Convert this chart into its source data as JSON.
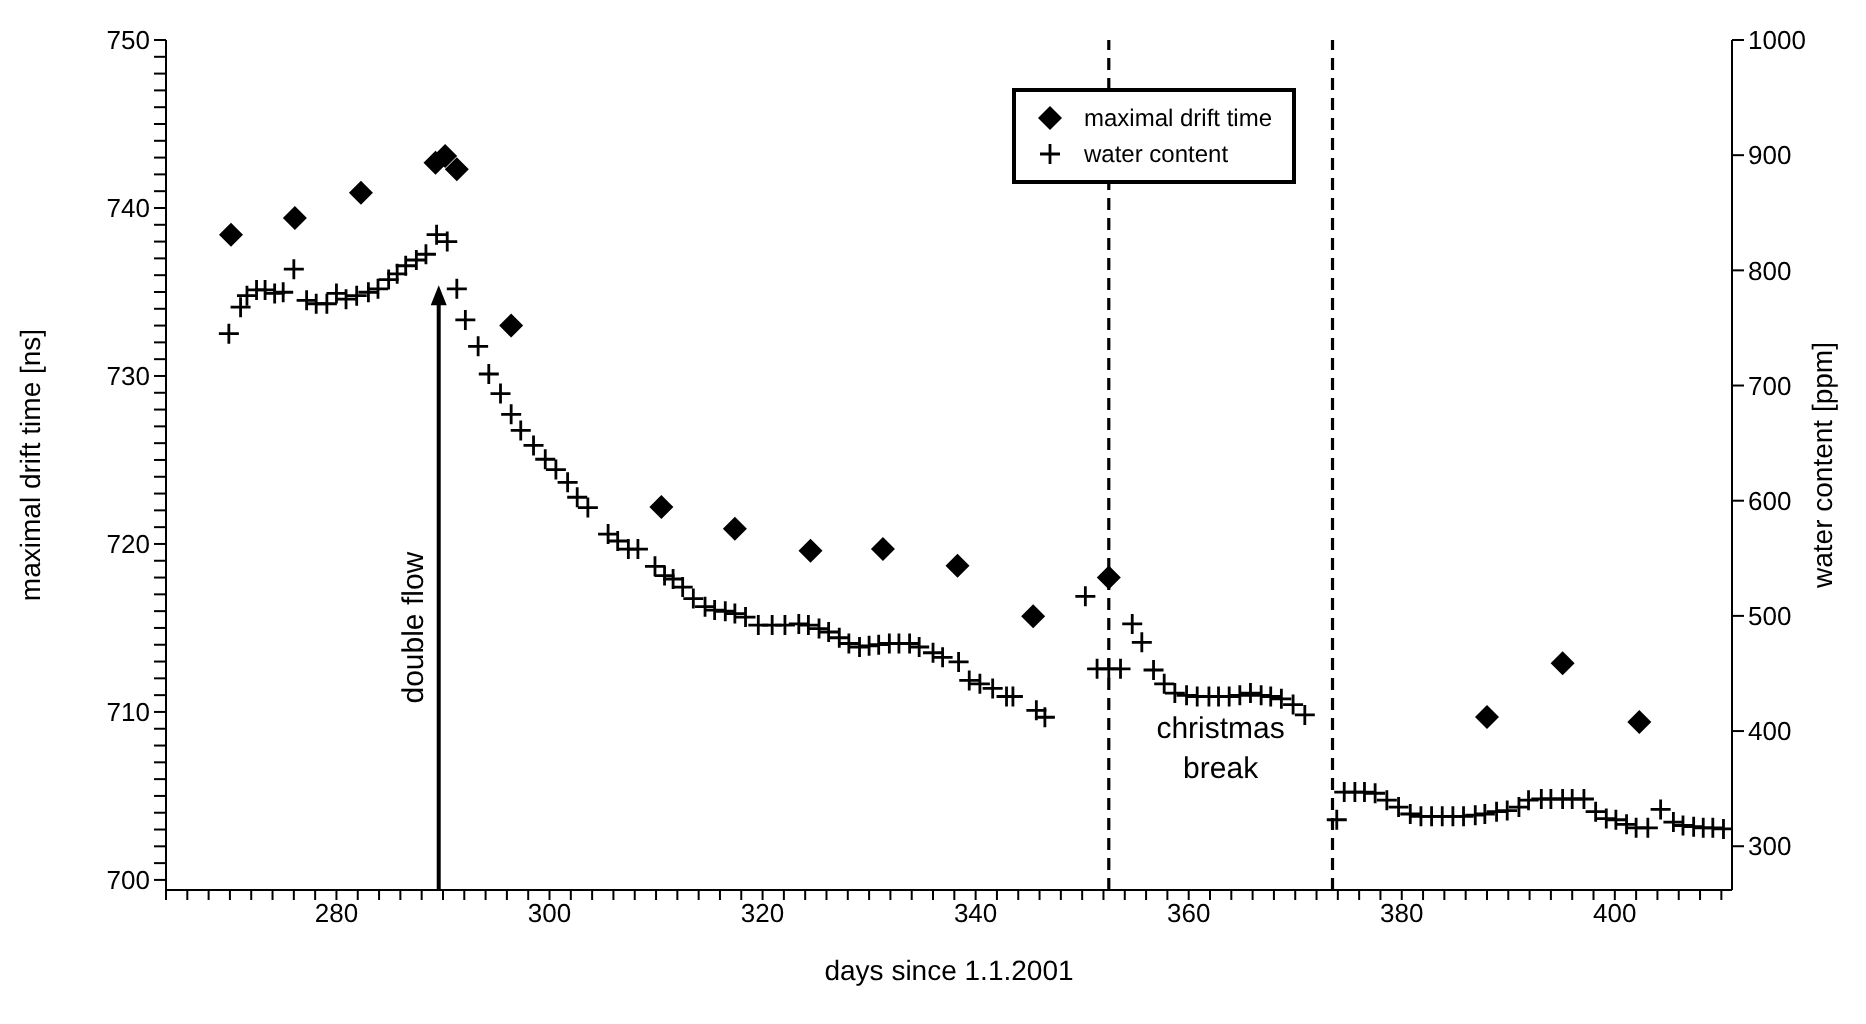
{
  "chart_data": {
    "type": "scatter",
    "xlabel": "days since 1.1.2001",
    "ylabel": "maximal drift time [ns]",
    "y2label": "water content [ppm]",
    "xlim": [
      264,
      411
    ],
    "xticks": [
      {
        "value": 264,
        "label": null
      },
      {
        "value": 266,
        "label": null
      },
      {
        "value": 268,
        "label": null
      },
      {
        "value": 270,
        "label": null
      },
      {
        "value": 272,
        "label": null
      },
      {
        "value": 274,
        "label": null
      },
      {
        "value": 276,
        "label": null
      },
      {
        "value": 278,
        "label": null
      },
      280,
      {
        "value": 282,
        "label": null
      },
      {
        "value": 284,
        "label": null
      },
      {
        "value": 286,
        "label": null
      },
      {
        "value": 288,
        "label": null
      },
      {
        "value": 290,
        "label": null
      },
      {
        "value": 292,
        "label": null
      },
      {
        "value": 294,
        "label": null
      },
      {
        "value": 296,
        "label": null
      },
      {
        "value": 298,
        "label": null
      },
      300,
      {
        "value": 302,
        "label": null
      },
      {
        "value": 304,
        "label": null
      },
      {
        "value": 306,
        "label": null
      },
      {
        "value": 308,
        "label": null
      },
      {
        "value": 310,
        "label": null
      },
      {
        "value": 312,
        "label": null
      },
      {
        "value": 314,
        "label": null
      },
      {
        "value": 316,
        "label": null
      },
      {
        "value": 318,
        "label": null
      },
      320,
      {
        "value": 322,
        "label": null
      },
      {
        "value": 324,
        "label": null
      },
      {
        "value": 326,
        "label": null
      },
      {
        "value": 328,
        "label": null
      },
      {
        "value": 330,
        "label": null
      },
      {
        "value": 332,
        "label": null
      },
      {
        "value": 334,
        "label": null
      },
      {
        "value": 336,
        "label": null
      },
      {
        "value": 338,
        "label": null
      },
      340,
      {
        "value": 342,
        "label": null
      },
      {
        "value": 344,
        "label": null
      },
      {
        "value": 346,
        "label": null
      },
      {
        "value": 348,
        "label": null
      },
      {
        "value": 350,
        "label": null
      },
      {
        "value": 352,
        "label": null
      },
      {
        "value": 354,
        "label": null
      },
      {
        "value": 356,
        "label": null
      },
      {
        "value": 358,
        "label": null
      },
      360,
      {
        "value": 362,
        "label": null
      },
      {
        "value": 364,
        "label": null
      },
      {
        "value": 366,
        "label": null
      },
      {
        "value": 368,
        "label": null
      },
      {
        "value": 370,
        "label": null
      },
      {
        "value": 372,
        "label": null
      },
      {
        "value": 374,
        "label": null
      },
      {
        "value": 376,
        "label": null
      },
      {
        "value": 378,
        "label": null
      },
      380,
      {
        "value": 382,
        "label": null
      },
      {
        "value": 384,
        "label": null
      },
      {
        "value": 386,
        "label": null
      },
      {
        "value": 388,
        "label": null
      },
      {
        "value": 390,
        "label": null
      },
      {
        "value": 392,
        "label": null
      },
      {
        "value": 394,
        "label": null
      },
      {
        "value": 396,
        "label": null
      },
      {
        "value": 398,
        "label": null
      },
      400,
      {
        "value": 402,
        "label": null
      },
      {
        "value": 404,
        "label": null
      },
      {
        "value": 406,
        "label": null
      },
      {
        "value": 408,
        "label": null
      },
      {
        "value": 410,
        "label": null
      }
    ],
    "ylim": [
      699.4,
      750
    ],
    "yticks": [
      700,
      {
        "value": 701,
        "label": null
      },
      {
        "value": 702,
        "label": null
      },
      {
        "value": 703,
        "label": null
      },
      {
        "value": 704,
        "label": null
      },
      {
        "value": 705,
        "label": null
      },
      {
        "value": 706,
        "label": null
      },
      {
        "value": 707,
        "label": null
      },
      {
        "value": 708,
        "label": null
      },
      {
        "value": 709,
        "label": null
      },
      710,
      {
        "value": 711,
        "label": null
      },
      {
        "value": 712,
        "label": null
      },
      {
        "value": 713,
        "label": null
      },
      {
        "value": 714,
        "label": null
      },
      {
        "value": 715,
        "label": null
      },
      {
        "value": 716,
        "label": null
      },
      {
        "value": 717,
        "label": null
      },
      {
        "value": 718,
        "label": null
      },
      {
        "value": 719,
        "label": null
      },
      720,
      {
        "value": 721,
        "label": null
      },
      {
        "value": 722,
        "label": null
      },
      {
        "value": 723,
        "label": null
      },
      {
        "value": 724,
        "label": null
      },
      {
        "value": 725,
        "label": null
      },
      {
        "value": 726,
        "label": null
      },
      {
        "value": 727,
        "label": null
      },
      {
        "value": 728,
        "label": null
      },
      {
        "value": 729,
        "label": null
      },
      730,
      {
        "value": 731,
        "label": null
      },
      {
        "value": 732,
        "label": null
      },
      {
        "value": 733,
        "label": null
      },
      {
        "value": 734,
        "label": null
      },
      {
        "value": 735,
        "label": null
      },
      {
        "value": 736,
        "label": null
      },
      {
        "value": 737,
        "label": null
      },
      {
        "value": 738,
        "label": null
      },
      {
        "value": 739,
        "label": null
      },
      740,
      {
        "value": 741,
        "label": null
      },
      {
        "value": 742,
        "label": null
      },
      {
        "value": 743,
        "label": null
      },
      {
        "value": 744,
        "label": null
      },
      {
        "value": 745,
        "label": null
      },
      {
        "value": 746,
        "label": null
      },
      {
        "value": 747,
        "label": null
      },
      {
        "value": 748,
        "label": null
      },
      {
        "value": 749,
        "label": null
      },
      750
    ],
    "y2lim": [
      262,
      1000
    ],
    "y2ticks": [
      300,
      400,
      500,
      600,
      700,
      800,
      900,
      1000
    ],
    "grid": false,
    "legend": "top right",
    "series": [
      {
        "name": "maximal drift time",
        "color": "#000000",
        "marker": "diamond",
        "x": [
          270.1,
          276.1,
          282.3,
          289.3,
          290.2,
          291.3,
          296.4,
          310.5,
          317.4,
          324.5,
          331.3,
          338.3,
          345.4,
          352.5,
          388.0,
          395.1,
          402.3
        ],
        "values": [
          738.4,
          739.4,
          740.9,
          742.7,
          743.1,
          742.3,
          733.0,
          722.2,
          720.9,
          719.6,
          719.7,
          718.7,
          715.7,
          718.0,
          709.7,
          712.9,
          709.4
        ]
      },
      {
        "name": "water content",
        "color": "#000000",
        "marker": "cross",
        "axis": "y2",
        "x": [
          269.9,
          271.0,
          271.6,
          272.5,
          273.3,
          274.2,
          275.0,
          276.0,
          277.2,
          278.1,
          279.1,
          280.0,
          280.9,
          281.9,
          283.0,
          283.9,
          284.9,
          285.7,
          286.5,
          287.5,
          288.4,
          289.4,
          290.4,
          291.3,
          292.1,
          293.3,
          294.3,
          295.4,
          296.4,
          297.3,
          298.5,
          299.6,
          300.6,
          301.7,
          302.6,
          303.6,
          305.5,
          306.4,
          307.4,
          308.3,
          309.9,
          310.8,
          311.6,
          312.5,
          313.5,
          314.6,
          315.5,
          316.5,
          317.4,
          318.4,
          319.6,
          320.9,
          322.1,
          323.4,
          324.3,
          325.3,
          326.2,
          327.2,
          328.1,
          329.1,
          330.0,
          330.9,
          331.9,
          332.8,
          333.8,
          334.7,
          336.0,
          336.9,
          338.4,
          339.4,
          340.4,
          341.6,
          342.9,
          343.5,
          345.7,
          346.5,
          350.3,
          351.4,
          352.5,
          353.6,
          354.7,
          355.6,
          356.7,
          357.7,
          358.7,
          359.8,
          360.8,
          361.9,
          362.8,
          363.8,
          364.8,
          365.8,
          366.8,
          367.7,
          368.7,
          369.8,
          370.9,
          373.9,
          374.6,
          375.6,
          376.5,
          377.5,
          378.6,
          379.7,
          380.8,
          381.8,
          382.8,
          383.8,
          384.8,
          385.8,
          386.9,
          387.8,
          388.9,
          389.9,
          391.0,
          391.9,
          393.1,
          394.0,
          395.1,
          396.0,
          397.1,
          398.2,
          399.2,
          400.1,
          401.1,
          402.0,
          403.1,
          404.3,
          405.5,
          406.4,
          407.4,
          408.3,
          409.2,
          410.2
        ],
        "values": [
          745,
          768,
          778,
          783,
          783,
          780,
          781,
          801,
          774,
          771,
          771,
          780,
          775,
          778,
          781,
          784,
          792,
          797,
          804,
          809,
          814,
          831,
          825,
          784,
          757,
          734,
          710,
          693,
          675,
          661,
          648,
          636,
          627,
          616,
          603,
          594,
          571,
          565,
          558,
          558,
          543,
          535,
          532,
          525,
          515,
          508,
          505,
          504,
          502,
          499,
          492,
          492,
          492,
          493,
          492,
          489,
          486,
          481,
          476,
          473,
          474,
          475,
          476,
          476,
          476,
          473,
          468,
          464,
          460,
          444,
          441,
          437,
          430,
          430,
          418,
          412,
          517,
          454,
          454,
          454,
          493,
          477,
          453,
          441,
          433,
          431,
          430,
          430,
          430,
          430,
          431,
          433,
          431,
          430,
          428,
          423,
          414,
          323,
          347,
          347,
          347,
          346,
          340,
          334,
          328,
          326,
          326,
          326,
          326,
          326,
          327,
          328,
          330,
          331,
          334,
          340,
          341,
          341,
          341,
          341,
          341,
          330,
          324,
          323,
          319,
          316,
          316,
          332,
          321,
          318,
          317,
          316,
          316,
          315
        ]
      }
    ],
    "ref_lines": [
      {
        "axis": "x",
        "value": 352.5,
        "label": null,
        "color": "#000000",
        "line_style": "dashed"
      },
      {
        "axis": "x",
        "value": 373.5,
        "label": null,
        "color": "#000000",
        "line_style": "dashed"
      }
    ],
    "annotations": [
      "double flow",
      "christmas break"
    ]
  }
}
